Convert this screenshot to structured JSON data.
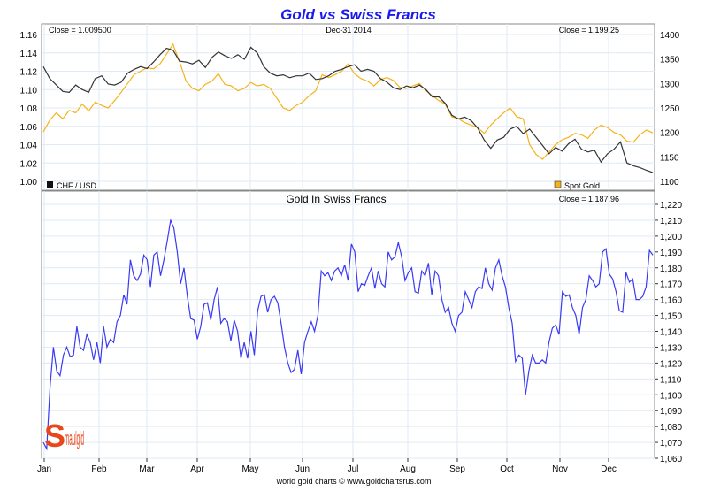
{
  "chart_data": [
    {
      "type": "line",
      "title": "Gold vs Swiss Francs",
      "date_label": "Dec-31  2014",
      "left_close": "Close = 1.009500",
      "right_close": "Close = 1,199.25",
      "x_ticks": [
        "Jan",
        "Feb",
        "Mar",
        "Apr",
        "May",
        "Jun",
        "Jul",
        "Aug",
        "Sep",
        "Oct",
        "Nov",
        "Dec"
      ],
      "left_axis": {
        "ylim": [
          1.0,
          1.16
        ],
        "ticks": [
          "1.00",
          "1.02",
          "1.04",
          "1.06",
          "1.08",
          "1.10",
          "1.12",
          "1.14",
          "1.16"
        ]
      },
      "right_axis": {
        "ylim": [
          1100,
          1400
        ],
        "ticks": [
          "1100",
          "1150",
          "1200",
          "1250",
          "1300",
          "1350",
          "1400"
        ]
      },
      "legend": [
        {
          "label": "CHF / USD",
          "color": "#222222",
          "placement": "bottom-left"
        },
        {
          "label": "Spot Gold",
          "color": "#f5b31a",
          "placement": "bottom-right"
        }
      ],
      "series": [
        {
          "name": "CHF / USD",
          "axis": "left",
          "color": "#333333",
          "values": [
            1.125,
            1.112,
            1.105,
            1.098,
            1.097,
            1.105,
            1.1,
            1.097,
            1.112,
            1.115,
            1.106,
            1.105,
            1.108,
            1.118,
            1.122,
            1.125,
            1.123,
            1.13,
            1.138,
            1.145,
            1.143,
            1.131,
            1.13,
            1.128,
            1.132,
            1.124,
            1.135,
            1.141,
            1.137,
            1.134,
            1.138,
            1.133,
            1.146,
            1.14,
            1.125,
            1.118,
            1.115,
            1.116,
            1.113,
            1.115,
            1.115,
            1.118,
            1.111,
            1.112,
            1.115,
            1.12,
            1.122,
            1.125,
            1.127,
            1.12,
            1.122,
            1.12,
            1.112,
            1.108,
            1.102,
            1.1,
            1.104,
            1.102,
            1.105,
            1.1,
            1.092,
            1.092,
            1.085,
            1.072,
            1.068,
            1.07,
            1.066,
            1.058,
            1.045,
            1.036,
            1.045,
            1.048,
            1.057,
            1.06,
            1.052,
            1.057,
            1.048,
            1.039,
            1.03,
            1.037,
            1.033,
            1.041,
            1.046,
            1.035,
            1.032,
            1.034,
            1.021,
            1.03,
            1.035,
            1.043,
            1.02,
            1.017,
            1.015,
            1.012,
            1.0095
          ]
        },
        {
          "name": "Spot Gold",
          "axis": "right",
          "color": "#f5b31a",
          "values": [
            1201,
            1225,
            1240,
            1228,
            1245,
            1240,
            1258,
            1244,
            1262,
            1255,
            1250,
            1265,
            1282,
            1300,
            1318,
            1325,
            1332,
            1330,
            1340,
            1360,
            1380,
            1345,
            1305,
            1290,
            1285,
            1298,
            1305,
            1320,
            1298,
            1295,
            1285,
            1290,
            1302,
            1295,
            1298,
            1290,
            1270,
            1250,
            1245,
            1255,
            1262,
            1275,
            1285,
            1318,
            1312,
            1318,
            1325,
            1340,
            1320,
            1310,
            1305,
            1295,
            1308,
            1312,
            1306,
            1292,
            1290,
            1295,
            1300,
            1285,
            1275,
            1265,
            1258,
            1232,
            1228,
            1220,
            1215,
            1210,
            1198,
            1215,
            1228,
            1240,
            1250,
            1232,
            1228,
            1175,
            1155,
            1145,
            1160,
            1175,
            1185,
            1190,
            1198,
            1195,
            1188,
            1205,
            1215,
            1210,
            1200,
            1195,
            1182,
            1180,
            1195,
            1205,
            1199
          ]
        }
      ]
    },
    {
      "type": "line",
      "title": "Gold In Swiss Francs",
      "close_label": "Close = 1,187.96",
      "x_ticks": [
        "Jan",
        "Feb",
        "Mar",
        "Apr",
        "May",
        "Jun",
        "Jul",
        "Aug",
        "Sep",
        "Oct",
        "Nov",
        "Dec"
      ],
      "ylim": [
        1060,
        1220
      ],
      "y_ticks": [
        "1,060",
        "1,070",
        "1,080",
        "1,090",
        "1,100",
        "1,110",
        "1,120",
        "1,130",
        "1,140",
        "1,150",
        "1,160",
        "1,170",
        "1,180",
        "1,190",
        "1,200",
        "1,210",
        "1,220"
      ],
      "series": [
        {
          "name": "Gold In Swiss Francs",
          "color": "#3a3af5",
          "values": [
            1070,
            1066,
            1105,
            1130,
            1115,
            1112,
            1125,
            1130,
            1124,
            1125,
            1143,
            1130,
            1128,
            1138,
            1133,
            1122,
            1133,
            1120,
            1143,
            1130,
            1135,
            1133,
            1146,
            1150,
            1163,
            1157,
            1185,
            1175,
            1172,
            1176,
            1188,
            1185,
            1168,
            1188,
            1190,
            1175,
            1185,
            1197,
            1210,
            1205,
            1190,
            1170,
            1180,
            1162,
            1148,
            1147,
            1135,
            1143,
            1157,
            1158,
            1147,
            1160,
            1168,
            1145,
            1148,
            1146,
            1134,
            1147,
            1140,
            1123,
            1133,
            1123,
            1140,
            1125,
            1153,
            1162,
            1163,
            1152,
            1160,
            1162,
            1158,
            1145,
            1130,
            1120,
            1114,
            1116,
            1128,
            1113,
            1133,
            1140,
            1146,
            1140,
            1150,
            1178,
            1175,
            1177,
            1172,
            1178,
            1180,
            1175,
            1182,
            1172,
            1195,
            1190,
            1165,
            1170,
            1169,
            1175,
            1180,
            1167,
            1178,
            1170,
            1168,
            1190,
            1185,
            1187,
            1196,
            1187,
            1172,
            1177,
            1180,
            1165,
            1164,
            1178,
            1175,
            1183,
            1163,
            1178,
            1175,
            1160,
            1152,
            1155,
            1145,
            1140,
            1150,
            1152,
            1165,
            1160,
            1155,
            1165,
            1168,
            1167,
            1180,
            1170,
            1166,
            1180,
            1185,
            1175,
            1168,
            1155,
            1145,
            1121,
            1125,
            1123,
            1100,
            1115,
            1125,
            1120,
            1120,
            1122,
            1120,
            1133,
            1142,
            1144,
            1138,
            1165,
            1162,
            1163,
            1155,
            1150,
            1138,
            1155,
            1160,
            1175,
            1172,
            1168,
            1170,
            1190,
            1192,
            1176,
            1173,
            1165,
            1153,
            1152,
            1177,
            1171,
            1173,
            1160,
            1160,
            1162,
            1168,
            1191,
            1188
          ]
        }
      ],
      "footer": "world gold charts © www.goldchartsrus.com",
      "logo": "Smaulgld"
    }
  ]
}
